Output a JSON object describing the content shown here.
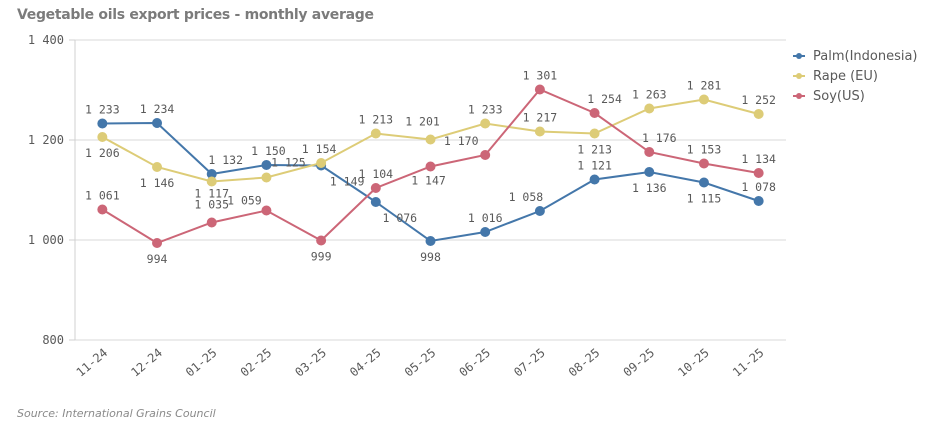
{
  "chart_data": {
    "type": "line",
    "title": "Vegetable oils export prices - monthly average",
    "source": "Source: International Grains Council",
    "xlabel": "",
    "ylabel": "",
    "ylim": [
      800,
      1400
    ],
    "yticks": [
      800,
      1000,
      1200,
      1400
    ],
    "ytick_labels": [
      "800",
      "1 000",
      "1 200",
      "1 400"
    ],
    "grid": true,
    "legend_position": "right",
    "categories": [
      "11-24",
      "12-24",
      "01-25",
      "02-25",
      "03-25",
      "04-25",
      "05-25",
      "06-25",
      "07-25",
      "08-25",
      "09-25",
      "10-25",
      "11-25"
    ],
    "series": [
      {
        "name": "Palm(Indonesia)",
        "color": "#4477aa",
        "values": [
          1233,
          1234,
          1132,
          1150,
          1149,
          1076,
          998,
          1016,
          1058,
          1121,
          1136,
          1115,
          1078
        ],
        "labels": [
          "1 233",
          "1 234",
          "1 132",
          "1 150",
          "1 149",
          "1 076",
          "998",
          "1 016",
          "1 058",
          "1 121",
          "1 136",
          "1 115",
          "1 078"
        ]
      },
      {
        "name": "Rape (EU)",
        "color": "#ddcc77",
        "values": [
          1206,
          1146,
          1117,
          1125,
          1154,
          1213,
          1201,
          1233,
          1217,
          1213,
          1263,
          1281,
          1252
        ],
        "labels": [
          "1 206",
          "1 146",
          "1 117",
          "1 125",
          "1 154",
          "1 213",
          "1 201",
          "1 233",
          "1 217",
          "1 213",
          "1 263",
          "1 281",
          "1 252"
        ]
      },
      {
        "name": "Soy(US)",
        "color": "#cc6677",
        "values": [
          1061,
          994,
          1035,
          1059,
          999,
          1104,
          1147,
          1170,
          1301,
          1254,
          1176,
          1153,
          1134
        ],
        "labels": [
          "1 061",
          "994",
          "1 035",
          "1 059",
          "999",
          "1 104",
          "1 147",
          "1 170",
          "1 301",
          "1 254",
          "1 176",
          "1 153",
          "1 134"
        ]
      }
    ]
  }
}
